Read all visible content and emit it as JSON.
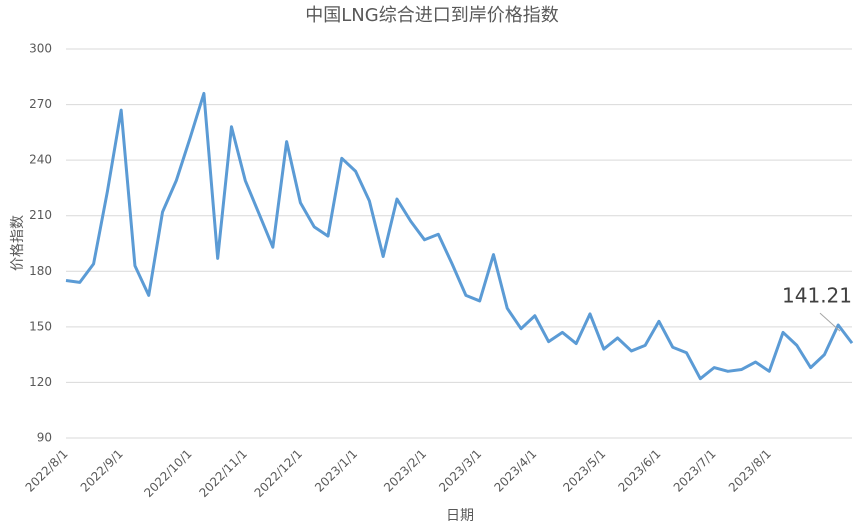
{
  "chart_data": {
    "type": "line",
    "title": "中国LNG综合进口到岸价格指数",
    "x_label": "日期",
    "y_label": "价格指数",
    "categories": [
      "2022/8/1",
      null,
      null,
      null,
      "2022/9/1",
      null,
      null,
      null,
      null,
      "2022/10/1",
      null,
      null,
      null,
      "2022/11/1",
      null,
      null,
      null,
      "2022/12/1",
      null,
      null,
      null,
      "2023/1/1",
      null,
      null,
      null,
      null,
      "2023/2/1",
      null,
      null,
      null,
      "2023/3/1",
      null,
      null,
      null,
      "2023/4/1",
      null,
      null,
      null,
      null,
      "2023/5/1",
      null,
      null,
      null,
      "2023/6/1",
      null,
      null,
      null,
      "2023/7/1",
      null,
      null,
      null,
      "2023/8/1",
      null,
      null,
      null,
      null,
      null,
      null
    ],
    "series": [
      {
        "name": "价格指数",
        "color": "#5b9bd5",
        "values": [
          175,
          174,
          184,
          223,
          267,
          183,
          167,
          212,
          229,
          252,
          276,
          187,
          258,
          229,
          211,
          193,
          250,
          217,
          204,
          199,
          241,
          234,
          218,
          188,
          219,
          207,
          197,
          200,
          184,
          167,
          164,
          189,
          160,
          149,
          156,
          142,
          147,
          141,
          157,
          138,
          144,
          137,
          140,
          153,
          139,
          136,
          122,
          128,
          126,
          127,
          131,
          126,
          147,
          140,
          128,
          135,
          151,
          141.21
        ]
      }
    ],
    "ylim": [
      90,
      300
    ],
    "yticks": [
      90,
      120,
      150,
      180,
      210,
      240,
      270,
      300
    ],
    "grid": true
  }
}
